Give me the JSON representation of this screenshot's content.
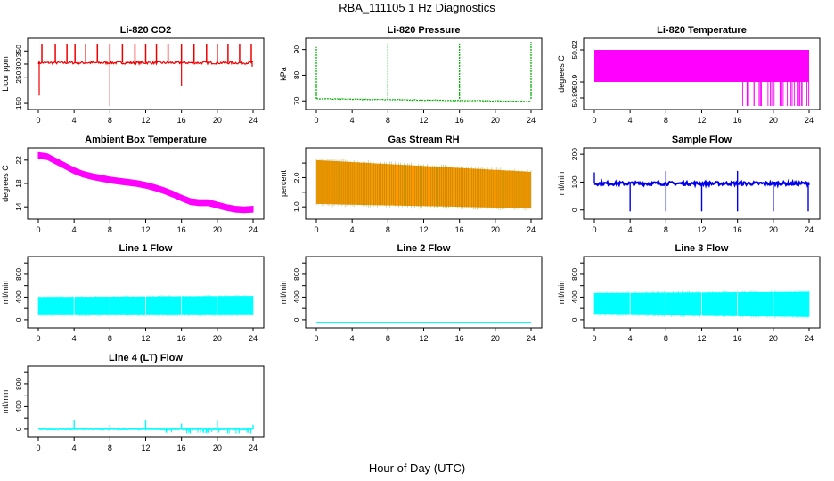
{
  "figure": {
    "title": "RBA_111105  1 Hz Diagnostics",
    "xlabel": "Hour of Day (UTC)"
  },
  "chart_data": [
    {
      "type": "line",
      "title": "Li-820 CO2",
      "ylabel": "Licor ppm",
      "color": "#ee0000",
      "xlim": [
        0,
        24
      ],
      "ylim": [
        140,
        385
      ],
      "xticks": [
        0,
        4,
        8,
        12,
        16,
        20,
        24
      ],
      "yticks": [
        150,
        250,
        300,
        350
      ],
      "series": [
        {
          "name": "CO2",
          "baseline": 305,
          "noise": 5,
          "spikes_up": [
            0.4,
            1.9,
            3.2,
            4.1,
            5.3,
            6.6,
            8.0,
            9.4,
            10.8,
            12.0,
            13.2,
            14.5,
            16.0,
            17.4,
            18.8,
            20.0,
            21.2,
            22.5,
            23.8
          ],
          "spike_up_value": 378,
          "spikes_down": [
            [
              0.1,
              180
            ],
            [
              8.0,
              140
            ],
            [
              16.0,
              215
            ],
            [
              23.9,
              290
            ]
          ]
        }
      ]
    },
    {
      "type": "line",
      "title": "Li-820 Pressure",
      "ylabel": "kPa",
      "color": "#00aa00",
      "xlim": [
        0,
        24
      ],
      "ylim": [
        68,
        93
      ],
      "xticks": [
        0,
        4,
        8,
        12,
        16,
        20,
        24
      ],
      "yticks": [
        70,
        80,
        90
      ],
      "series": [
        {
          "name": "Pressure",
          "start": 70.8,
          "end": 69.8,
          "spikes": [
            [
              0.0,
              91
            ],
            [
              8.0,
              92.5
            ],
            [
              16.0,
              92.5
            ],
            [
              24.0,
              93
            ]
          ]
        }
      ]
    },
    {
      "type": "step",
      "title": "Li-820 Temperature",
      "ylabel": "degrees C",
      "color": "#ff00ff",
      "xlim": [
        0,
        24
      ],
      "ylim": [
        50.885,
        50.925
      ],
      "xticks": [
        0,
        4,
        8,
        12,
        16,
        20,
        24
      ],
      "yticks": [
        50.89,
        50.9,
        50.92
      ],
      "ytick_labels": [
        "50.89",
        "50.9",
        "50.92"
      ],
      "series": [
        {
          "name": "Temperature",
          "low": 50.9,
          "high": 50.92,
          "floor": 50.885,
          "dropouts_after_hour": 16.3
        }
      ]
    },
    {
      "type": "line",
      "title": "Ambient Box Temperature",
      "ylabel": "degrees C",
      "color": "#ff00ff",
      "xlim": [
        0,
        24
      ],
      "ylim": [
        12.5,
        23.5
      ],
      "xticks": [
        0,
        4,
        8,
        12,
        16,
        20,
        24
      ],
      "yticks": [
        14,
        18,
        22
      ],
      "series": [
        {
          "name": "Ambient",
          "x": [
            0,
            1,
            2,
            3,
            4,
            5,
            6,
            7,
            8,
            9,
            10,
            11,
            12,
            13,
            14,
            15,
            16,
            17,
            18,
            19,
            20,
            21,
            22,
            23,
            24
          ],
          "y": [
            22.8,
            22.6,
            21.8,
            21.0,
            20.2,
            19.6,
            19.2,
            18.9,
            18.6,
            18.4,
            18.2,
            18.0,
            17.7,
            17.3,
            16.8,
            16.2,
            15.5,
            14.9,
            14.7,
            14.7,
            14.3,
            13.9,
            13.6,
            13.5,
            13.6
          ]
        }
      ]
    },
    {
      "type": "band",
      "title": "Gas Stream RH",
      "ylabel": "percent",
      "color": "#ff9900",
      "edge_color": "#557700",
      "xlim": [
        0,
        24
      ],
      "ylim": [
        0.7,
        2.9
      ],
      "xticks": [
        0,
        4,
        8,
        12,
        16,
        20,
        24
      ],
      "yticks": [
        1.0,
        1.5,
        2.0,
        2.5
      ],
      "ytick_labels": [
        "1.0",
        "",
        "2.0",
        ""
      ],
      "series": [
        {
          "name": "RH",
          "top_start": 2.6,
          "top_end": 2.2,
          "bottom_start": 1.1,
          "bottom_end": 0.95
        }
      ]
    },
    {
      "type": "line",
      "title": "Sample Flow",
      "ylabel": "ml/min",
      "color": "#0000ee",
      "xlim": [
        0,
        24
      ],
      "ylim": [
        -20,
        210
      ],
      "xticks": [
        0,
        4,
        8,
        12,
        16,
        20,
        24
      ],
      "yticks": [
        0,
        100,
        200
      ],
      "series": [
        {
          "name": "Sample",
          "baseline": 95,
          "noise": 6,
          "spikes_down": [
            4.0,
            8.0,
            12.0,
            16.0,
            20.0,
            23.9
          ],
          "spike_down_value": -5,
          "spikes_up": [
            [
              0.0,
              135
            ],
            [
              8.0,
              140
            ],
            [
              16.0,
              140
            ]
          ]
        }
      ]
    },
    {
      "type": "band",
      "title": "Line 1 Flow",
      "ylabel": "ml/min",
      "color": "#00ffff",
      "xlim": [
        0,
        24
      ],
      "ylim": [
        -80,
        1050
      ],
      "xticks": [
        0,
        4,
        8,
        12,
        16,
        20,
        24
      ],
      "yticks": [
        0,
        200,
        400,
        600,
        800,
        1000
      ],
      "ytick_labels": [
        "0",
        "",
        "400",
        "",
        "800",
        ""
      ],
      "series": [
        {
          "name": "Line 1",
          "top_start": 400,
          "top_end": 420,
          "bottom_start": 80,
          "bottom_end": 80
        }
      ]
    },
    {
      "type": "line",
      "title": "Line 2 Flow",
      "ylabel": "ml/min",
      "color": "#00ffff",
      "xlim": [
        0,
        24
      ],
      "ylim": [
        -80,
        1050
      ],
      "xticks": [
        0,
        4,
        8,
        12,
        16,
        20,
        24
      ],
      "yticks": [
        0,
        200,
        400,
        600,
        800,
        1000
      ],
      "ytick_labels": [
        "0",
        "",
        "400",
        "",
        "800",
        ""
      ],
      "series": [
        {
          "name": "Line 2",
          "constant": -55
        }
      ]
    },
    {
      "type": "band",
      "title": "Line 3 Flow",
      "ylabel": "ml/min",
      "color": "#00ffff",
      "xlim": [
        0,
        24
      ],
      "ylim": [
        -80,
        1050
      ],
      "xticks": [
        0,
        4,
        8,
        12,
        16,
        20,
        24
      ],
      "yticks": [
        0,
        200,
        400,
        600,
        800,
        1000
      ],
      "ytick_labels": [
        "0",
        "",
        "400",
        "",
        "800",
        ""
      ],
      "series": [
        {
          "name": "Line 3",
          "top_start": 470,
          "top_end": 490,
          "bottom_start": 90,
          "bottom_end": 50
        }
      ]
    },
    {
      "type": "line",
      "title": "Line 4 (LT) Flow",
      "ylabel": "ml/min",
      "color": "#00ffff",
      "xlim": [
        0,
        24
      ],
      "ylim": [
        -80,
        1050
      ],
      "xticks": [
        0,
        4,
        8,
        12,
        16,
        20,
        24
      ],
      "yticks": [
        0,
        200,
        400,
        600,
        800,
        1000
      ],
      "ytick_labels": [
        "0",
        "",
        "400",
        "",
        "800",
        ""
      ],
      "series": [
        {
          "name": "Line 4",
          "baseline": 0,
          "noise": 8,
          "spikes_up": [
            [
              4.0,
              170
            ],
            [
              8.0,
              80
            ],
            [
              12.0,
              170
            ],
            [
              16.0,
              100
            ],
            [
              20.0,
              150
            ],
            [
              24.0,
              80
            ]
          ],
          "dips_after_hour": 14.2,
          "dip_value": -80
        }
      ]
    }
  ]
}
